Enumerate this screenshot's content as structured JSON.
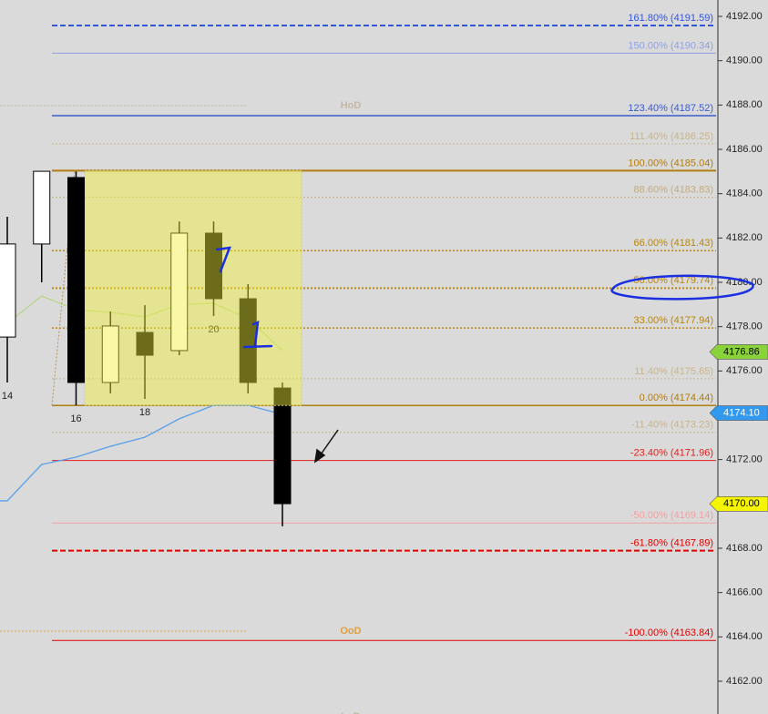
{
  "chart_data": {
    "type": "candlestick",
    "ylim": [
      4160.52,
      4192.74
    ],
    "yticks": [
      {
        "value": 4162,
        "label": "4162.00"
      },
      {
        "value": 4164,
        "label": "4164.00"
      },
      {
        "value": 4166,
        "label": "4166.00"
      },
      {
        "value": 4168,
        "label": "4168.00"
      },
      {
        "value": 4170,
        "label": "4170.00"
      },
      {
        "value": 4172,
        "label": "4172.00"
      },
      {
        "value": 4174,
        "label": "4174.00"
      },
      {
        "value": 4176,
        "label": "4176.00"
      },
      {
        "value": 4178,
        "label": "4178.00"
      },
      {
        "value": 4180,
        "label": "4180.00"
      },
      {
        "value": 4182,
        "label": "4182.00"
      },
      {
        "value": 4184,
        "label": "4184.00"
      },
      {
        "value": 4186,
        "label": "4186.00"
      },
      {
        "value": 4188,
        "label": "4188.00"
      },
      {
        "value": 4190,
        "label": "4190.00"
      },
      {
        "value": 4192,
        "label": "4192.00"
      }
    ],
    "categories": [
      "14",
      null,
      "16",
      null,
      "18",
      null,
      "20",
      null,
      null
    ],
    "candles": [
      {
        "open": 4177.53,
        "high": 4182.96,
        "low": 4175.48,
        "close": 4181.73
      },
      {
        "open": 4181.73,
        "high": 4185.01,
        "low": 4180.0,
        "close": 4185.01
      },
      {
        "open": 4184.73,
        "high": 4185.0,
        "low": 4174.45,
        "close": 4175.48
      },
      {
        "open": 4175.48,
        "high": 4178.68,
        "low": 4174.99,
        "close": 4178.03
      },
      {
        "open": 4177.74,
        "high": 4178.97,
        "low": 4174.74,
        "close": 4176.71
      },
      {
        "open": 4176.92,
        "high": 4182.75,
        "low": 4176.71,
        "close": 4182.22
      },
      {
        "open": 4182.22,
        "high": 4182.75,
        "low": 4178.48,
        "close": 4179.26
      },
      {
        "open": 4179.26,
        "high": 4179.92,
        "low": 4174.99,
        "close": 4175.48
      },
      {
        "open": 4175.23,
        "high": 4175.48,
        "low": 4168.99,
        "close": 4170.01
      }
    ],
    "up_color": "#ffffff",
    "down_color": "#000000",
    "lines": [
      {
        "color": "#b8d68a",
        "values": [
          4178.15,
          4179.38,
          4178.77,
          4178.64,
          4178.44,
          4179.01,
          4179.05,
          4178.36,
          4176.92
        ]
      },
      {
        "color": "#5aa0e8",
        "values": [
          4170.14,
          4171.78,
          4172.11,
          4172.6,
          4173.01,
          4173.84,
          4174.45,
          4174.45,
          4174.04
        ]
      }
    ],
    "levels": [
      {
        "label": "161.80% (4191.59)",
        "value": 4191.59,
        "color": "#3355dd",
        "style": "dashed",
        "width": 2
      },
      {
        "label": "150.00% (4190.34)",
        "value": 4190.34,
        "color": "#8fa0e0",
        "style": "solid",
        "width": 1
      },
      {
        "label": "123.40% (4187.52)",
        "value": 4187.52,
        "color": "#3a5bcc",
        "style": "solid",
        "width": 1.5
      },
      {
        "label": "111.40% (4186.25)",
        "value": 4186.25,
        "color": "#c8b48a",
        "style": "dotted",
        "width": 1
      },
      {
        "label": "100.00% (4185.04)",
        "value": 4185.04,
        "color": "#b07d10",
        "style": "solid",
        "width": 2
      },
      {
        "label": "88.60% (4183.83)",
        "value": 4183.83,
        "color": "#c0ab80",
        "style": "dotted",
        "width": 1
      },
      {
        "label": "66.00% (4181.43)",
        "value": 4181.43,
        "color": "#b8860b",
        "style": "dotted",
        "width": 1.5
      },
      {
        "label": "50.00% (4179.74)",
        "value": 4179.74,
        "color": "#b8860b",
        "style": "dotted",
        "width": 2
      },
      {
        "label": "33.00% (4177.94)",
        "value": 4177.94,
        "color": "#b8860b",
        "style": "dotted",
        "width": 1.5
      },
      {
        "label": "11.40% (4175.65)",
        "value": 4175.65,
        "color": "#c8b48a",
        "style": "dotted",
        "width": 1
      },
      {
        "label": "0.00% (4174.44)",
        "value": 4174.44,
        "color": "#b07d10",
        "style": "solid",
        "width": 1.5
      },
      {
        "label": "-11.40% (4173.23)",
        "value": 4173.23,
        "color": "#c8b48a",
        "style": "dotted",
        "width": 1
      },
      {
        "label": "-23.40% (4171.96)",
        "value": 4171.96,
        "color": "#e02020",
        "style": "solid",
        "width": 1
      },
      {
        "label": "-50.00% (4169.14)",
        "value": 4169.14,
        "color": "#f0a0a0",
        "style": "solid",
        "width": 1
      },
      {
        "label": "-61.80% (4167.89)",
        "value": 4167.89,
        "color": "#e00000",
        "style": "dashed",
        "width": 2
      },
      {
        "label": "-100.00% (4163.84)",
        "value": 4163.84,
        "color": "#e00000",
        "style": "solid",
        "width": 1
      }
    ],
    "session_levels": [
      {
        "label": "HoD",
        "value": 4187.97,
        "color": "#c4b8a4"
      },
      {
        "label": "OoD",
        "value": 4164.26,
        "color": "#e0a040"
      }
    ],
    "offscreen_label": "LoD",
    "price_tags": [
      {
        "value": 4176.86,
        "label": "4176.86",
        "color": "#8ad23a"
      },
      {
        "value": 4174.1,
        "label": "4174.10",
        "color": "#3399ee"
      },
      {
        "value": 4170.0,
        "label": "4170.00",
        "color": "#f5f500"
      }
    ]
  }
}
